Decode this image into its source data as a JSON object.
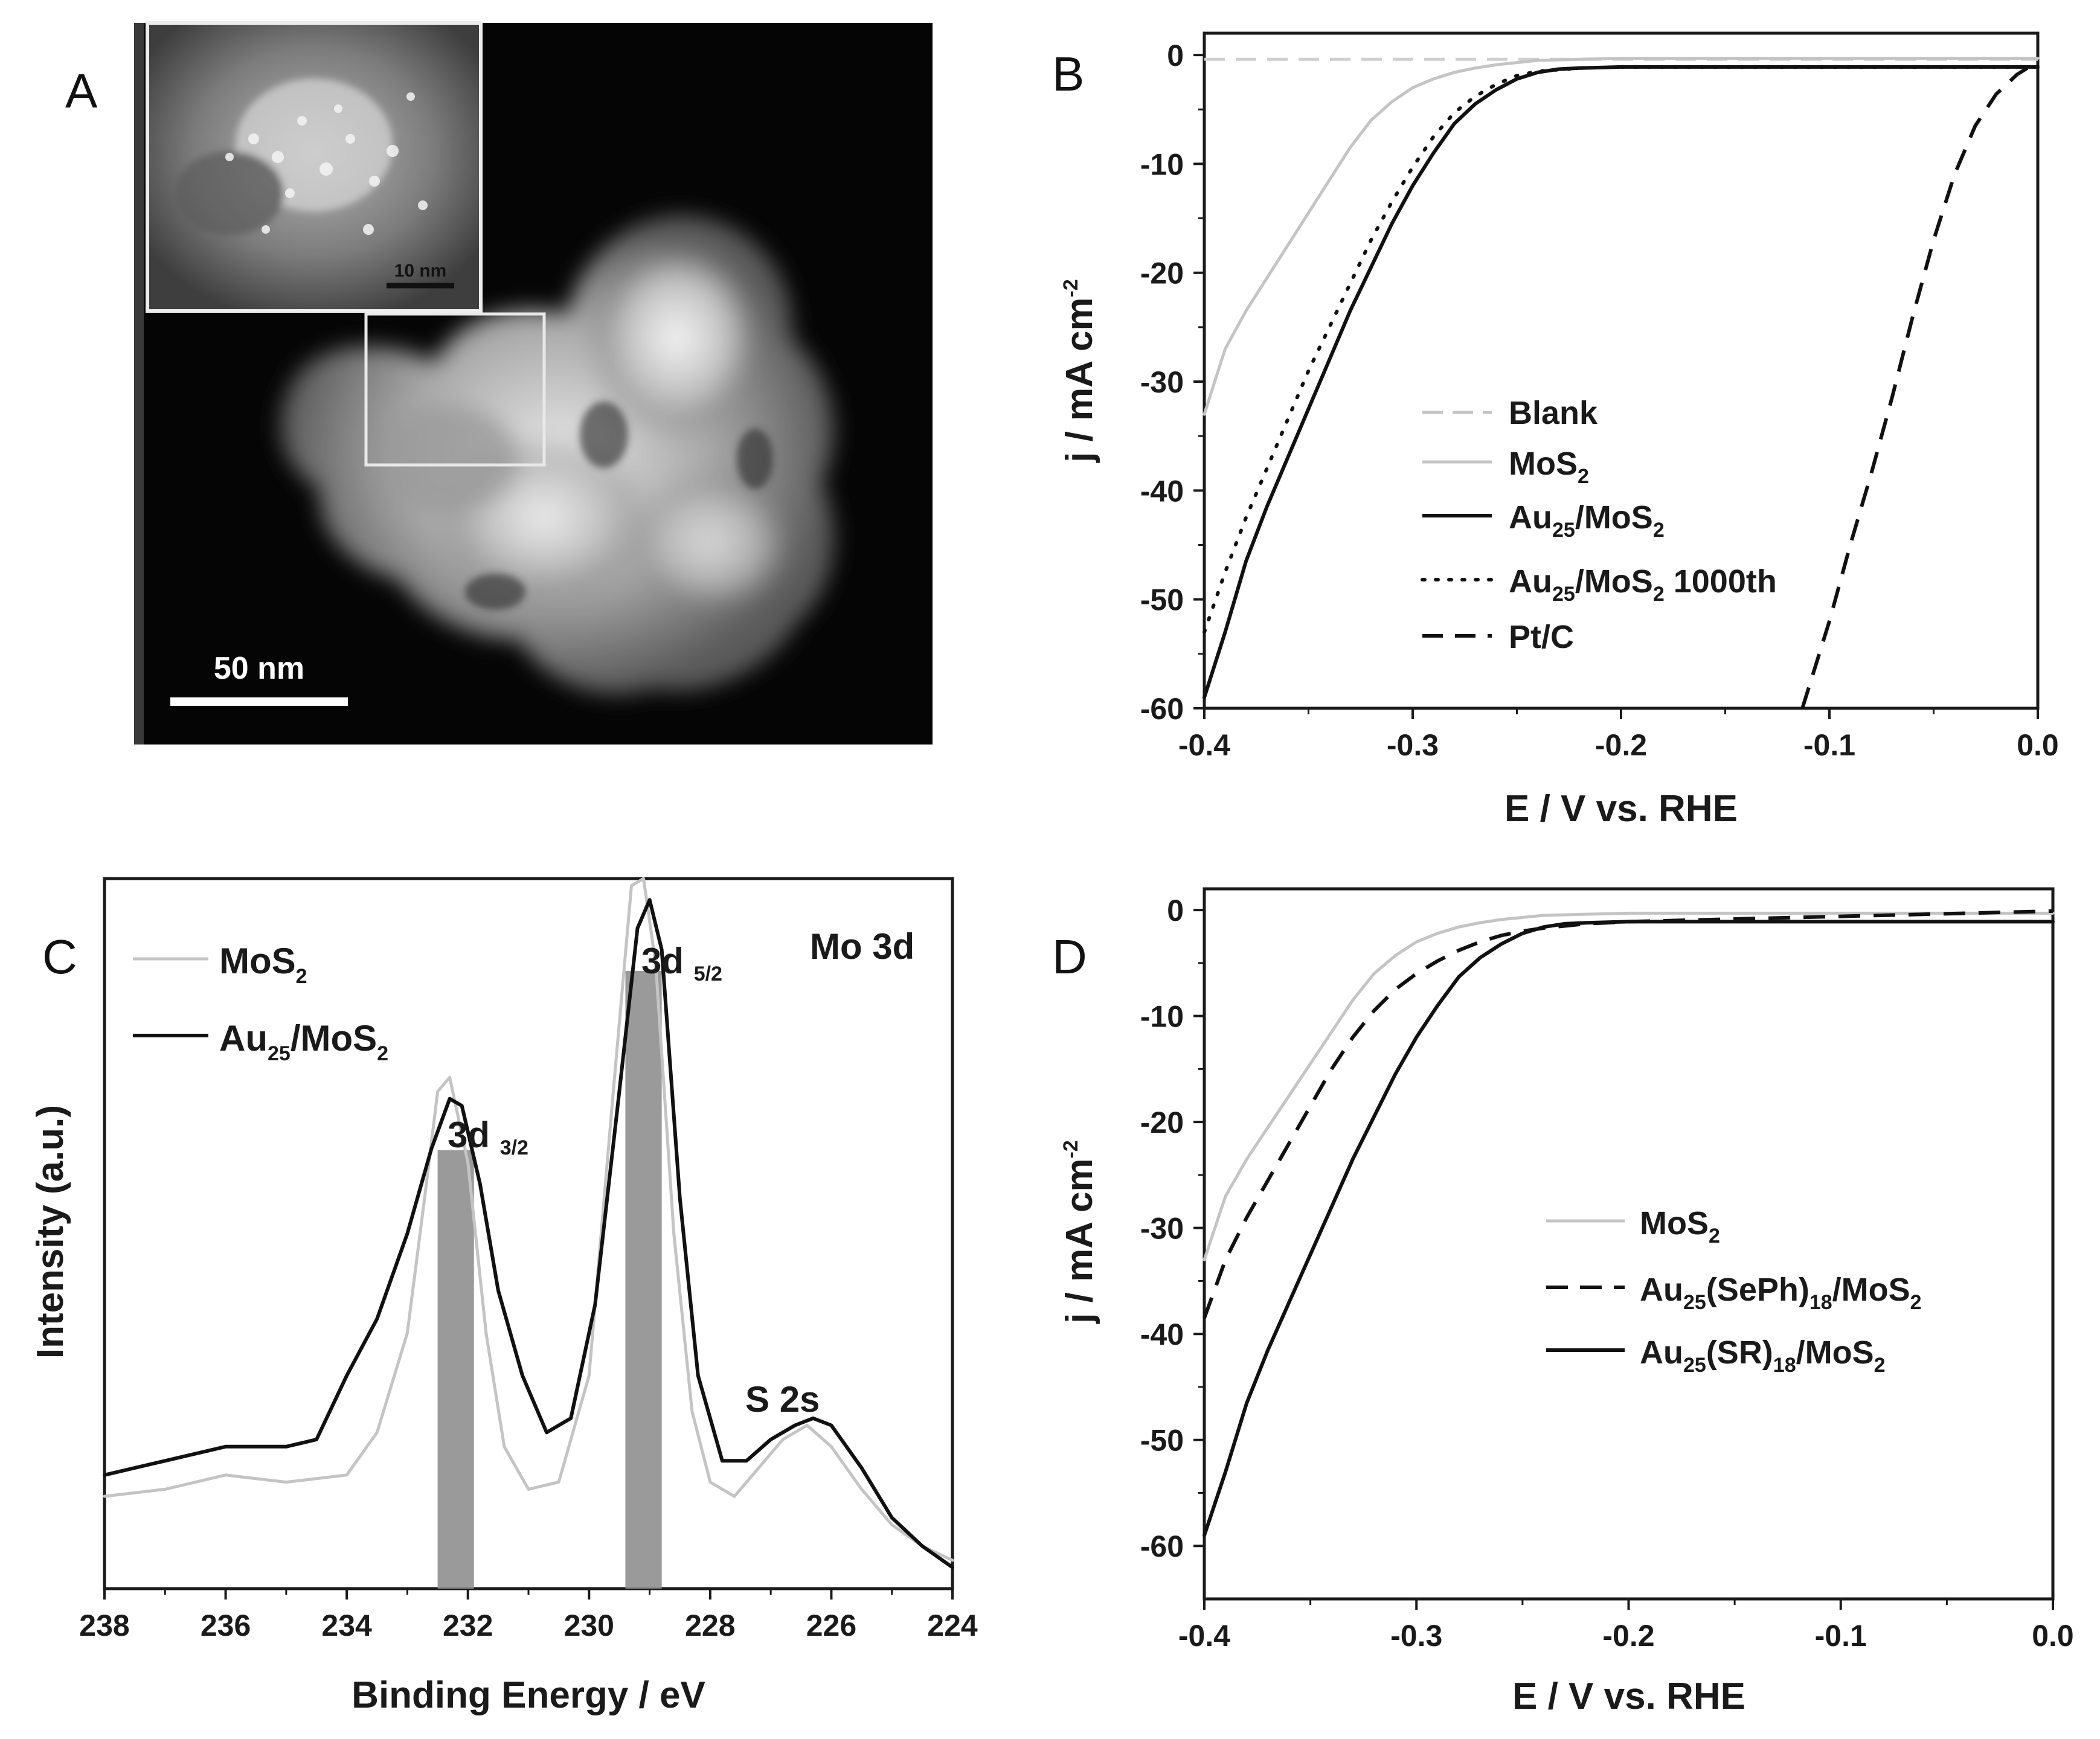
{
  "panels": {
    "a": {
      "label": "A",
      "scale_main": "50 nm",
      "scale_inset": "10 nm"
    },
    "b": {
      "label": "B"
    },
    "c": {
      "label": "C"
    },
    "d": {
      "label": "D"
    }
  },
  "colors": {
    "black": "#111111",
    "gray": "#c4c4c4",
    "lightgray": "#d0d0d0",
    "band": "#8f8f8f"
  },
  "chart_data": [
    {
      "panel": "B",
      "type": "line",
      "xlabel": "E / V vs. RHE",
      "ylabel": "j / mA cm-2",
      "xlim": [
        -0.4,
        0.0
      ],
      "ylim": [
        -60,
        2
      ],
      "xticks": [
        "-0.4",
        "-0.3",
        "-0.2",
        "-0.1",
        "0.0"
      ],
      "yticks": [
        "0",
        "-10",
        "-20",
        "-30",
        "-40",
        "-50",
        "-60"
      ],
      "legend_position": "center-right",
      "series": [
        {
          "name": "Blank",
          "style": "dashed-gray",
          "x": [
            -0.4,
            0.0
          ],
          "y": [
            -0.4,
            -0.4
          ]
        },
        {
          "name": "MoS2",
          "style": "solid-gray",
          "x": [
            -0.4,
            -0.39,
            -0.38,
            -0.37,
            -0.36,
            -0.35,
            -0.34,
            -0.33,
            -0.32,
            -0.31,
            -0.3,
            -0.29,
            -0.28,
            -0.27,
            -0.26,
            -0.25,
            -0.24,
            -0.22,
            -0.2,
            -0.15,
            -0.1,
            0.0
          ],
          "y": [
            -33,
            -27,
            -23.5,
            -20.5,
            -17.5,
            -14.5,
            -11.5,
            -8.5,
            -6,
            -4.3,
            -3,
            -2.2,
            -1.6,
            -1.2,
            -0.9,
            -0.7,
            -0.5,
            -0.4,
            -0.3,
            -0.3,
            -0.3,
            -0.3
          ]
        },
        {
          "name": "Au25/MoS2",
          "style": "solid-black",
          "x": [
            -0.4,
            -0.39,
            -0.38,
            -0.37,
            -0.36,
            -0.35,
            -0.34,
            -0.33,
            -0.32,
            -0.31,
            -0.3,
            -0.29,
            -0.28,
            -0.27,
            -0.26,
            -0.25,
            -0.24,
            -0.23,
            -0.22,
            -0.2,
            -0.15,
            -0.1,
            0.0
          ],
          "y": [
            -59,
            -53,
            -46.5,
            -41.5,
            -37,
            -32.5,
            -28,
            -23.5,
            -19.5,
            -15.5,
            -12,
            -9,
            -6.3,
            -4.5,
            -3.2,
            -2.2,
            -1.6,
            -1.3,
            -1.2,
            -1.1,
            -1.1,
            -1.1,
            -1.1
          ]
        },
        {
          "name": "Au25/MoS2 1000th",
          "style": "dotted-black",
          "x": [
            -0.4,
            -0.39,
            -0.38,
            -0.37,
            -0.36,
            -0.35,
            -0.34,
            -0.33,
            -0.32,
            -0.31,
            -0.3,
            -0.29,
            -0.28,
            -0.27,
            -0.26,
            -0.25,
            -0.24,
            -0.22,
            -0.2,
            -0.1,
            0.0
          ],
          "y": [
            -53,
            -47.5,
            -42.5,
            -38,
            -33.5,
            -29,
            -25,
            -21,
            -17,
            -13.5,
            -10.3,
            -7.5,
            -5.3,
            -3.8,
            -2.7,
            -1.9,
            -1.5,
            -1.2,
            -1.1,
            -1.1,
            -1.1
          ]
        },
        {
          "name": "Pt/C",
          "style": "dashed-black",
          "x": [
            -0.113,
            -0.1,
            -0.09,
            -0.08,
            -0.07,
            -0.06,
            -0.05,
            -0.04,
            -0.03,
            -0.02,
            -0.01,
            -0.005
          ],
          "y": [
            -60,
            -52,
            -45,
            -38.5,
            -31.5,
            -24,
            -17,
            -11,
            -6.5,
            -3.6,
            -1.8,
            -1.2
          ]
        }
      ]
    },
    {
      "panel": "C",
      "type": "line",
      "xlabel": "Binding Energy / eV",
      "ylabel": "Intensity (a.u.)",
      "xlim": [
        238,
        224
      ],
      "ylim": [
        0,
        1
      ],
      "xticks": [
        "238",
        "236",
        "234",
        "232",
        "230",
        "228",
        "226",
        "224"
      ],
      "legend_position": "top-left",
      "annotations": [
        "3d 3/2",
        "3d 5/2",
        "S 2s",
        "Mo 3d"
      ],
      "bands": [
        [
          232.5,
          231.9
        ],
        [
          229.4,
          228.8
        ]
      ],
      "series": [
        {
          "name": "MoS2",
          "style": "solid-gray",
          "x": [
            238,
            237,
            236,
            235,
            234,
            233.5,
            233,
            232.7,
            232.5,
            232.3,
            232,
            231.7,
            231.4,
            231,
            230.5,
            230,
            229.6,
            229.3,
            229.1,
            228.9,
            228.6,
            228.3,
            228,
            227.6,
            227.2,
            226.8,
            226.4,
            226,
            225.5,
            225,
            224.5,
            224
          ],
          "y": [
            0.13,
            0.14,
            0.16,
            0.15,
            0.16,
            0.22,
            0.36,
            0.56,
            0.7,
            0.72,
            0.6,
            0.36,
            0.2,
            0.14,
            0.15,
            0.3,
            0.7,
            0.99,
            1.0,
            0.88,
            0.5,
            0.25,
            0.15,
            0.13,
            0.17,
            0.21,
            0.23,
            0.2,
            0.14,
            0.09,
            0.06,
            0.04
          ]
        },
        {
          "name": "Au25/MoS2",
          "style": "solid-black",
          "x": [
            238,
            237,
            236,
            235,
            234.5,
            234,
            233.5,
            233,
            232.6,
            232.3,
            232.1,
            231.8,
            231.5,
            231.1,
            230.7,
            230.3,
            229.9,
            229.5,
            229.2,
            229,
            228.8,
            228.5,
            228.2,
            227.8,
            227.4,
            227,
            226.6,
            226.3,
            226,
            225.5,
            225,
            224.5,
            224
          ],
          "y": [
            0.16,
            0.18,
            0.2,
            0.2,
            0.21,
            0.3,
            0.38,
            0.5,
            0.62,
            0.69,
            0.68,
            0.57,
            0.42,
            0.3,
            0.22,
            0.24,
            0.4,
            0.7,
            0.93,
            0.97,
            0.9,
            0.55,
            0.3,
            0.18,
            0.18,
            0.21,
            0.23,
            0.24,
            0.23,
            0.17,
            0.1,
            0.06,
            0.03
          ]
        }
      ]
    },
    {
      "panel": "D",
      "type": "line",
      "xlabel": "E / V vs. RHE",
      "ylabel": "j / mA cm-2",
      "xlim": [
        -0.4,
        0.0
      ],
      "ylim": [
        -65,
        2
      ],
      "xticks": [
        "-0.4",
        "-0.3",
        "-0.2",
        "-0.1",
        "0.0"
      ],
      "yticks": [
        "0",
        "-10",
        "-20",
        "-30",
        "-40",
        "-50",
        "-60"
      ],
      "legend_position": "center-right",
      "series": [
        {
          "name": "MoS2",
          "style": "solid-gray",
          "x": [
            -0.4,
            -0.39,
            -0.38,
            -0.37,
            -0.36,
            -0.35,
            -0.34,
            -0.33,
            -0.32,
            -0.31,
            -0.3,
            -0.29,
            -0.28,
            -0.27,
            -0.26,
            -0.25,
            -0.24,
            -0.22,
            -0.2,
            -0.15,
            -0.1,
            0.0
          ],
          "y": [
            -33,
            -27,
            -23.5,
            -20.5,
            -17.5,
            -14.5,
            -11.5,
            -8.5,
            -6,
            -4.3,
            -3,
            -2.2,
            -1.6,
            -1.2,
            -0.9,
            -0.7,
            -0.5,
            -0.4,
            -0.3,
            -0.3,
            -0.3,
            -0.3
          ]
        },
        {
          "name": "Au25(SePh)18/MoS2",
          "style": "dashed-black",
          "x": [
            -0.4,
            -0.39,
            -0.38,
            -0.37,
            -0.36,
            -0.35,
            -0.34,
            -0.33,
            -0.32,
            -0.31,
            -0.3,
            -0.29,
            -0.28,
            -0.27,
            -0.26,
            -0.25,
            -0.24,
            -0.22,
            -0.2,
            -0.1,
            0.0
          ],
          "y": [
            -38.5,
            -33,
            -29,
            -25.5,
            -22,
            -18.5,
            -15,
            -12,
            -9.5,
            -7.5,
            -6,
            -4.8,
            -3.8,
            -3,
            -2.4,
            -2,
            -1.7,
            -1.3,
            -1.1,
            -0.6,
            -0.1
          ]
        },
        {
          "name": "Au25(SR)18/MoS2",
          "style": "solid-black",
          "x": [
            -0.4,
            -0.39,
            -0.38,
            -0.37,
            -0.36,
            -0.35,
            -0.34,
            -0.33,
            -0.32,
            -0.31,
            -0.3,
            -0.29,
            -0.28,
            -0.27,
            -0.26,
            -0.25,
            -0.24,
            -0.23,
            -0.22,
            -0.2,
            -0.15,
            -0.1,
            0.0
          ],
          "y": [
            -59,
            -53,
            -46.5,
            -41.5,
            -37,
            -32.5,
            -28,
            -23.5,
            -19.5,
            -15.5,
            -12,
            -9,
            -6.3,
            -4.5,
            -3.2,
            -2.2,
            -1.6,
            -1.3,
            -1.2,
            -1.1,
            -1.1,
            -1.1,
            -1.1
          ]
        }
      ]
    }
  ]
}
